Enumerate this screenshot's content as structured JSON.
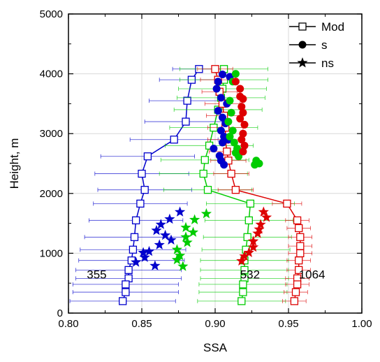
{
  "chart_data": {
    "type": "scatter",
    "xlabel": "SSA",
    "ylabel": "Height, m",
    "xlim": [
      0.8,
      1.0
    ],
    "ylim": [
      0,
      5000
    ],
    "xticks": [
      "0.80",
      "0.85",
      "0.90",
      "0.95",
      "1.00"
    ],
    "yticks": [
      "0",
      "1000",
      "2000",
      "3000",
      "4000",
      "5000"
    ],
    "grid": true,
    "legend_position": "top-right",
    "legend": [
      {
        "label": "Mod",
        "marker": "open-square"
      },
      {
        "label": "s",
        "marker": "filled-circle"
      },
      {
        "label": "ns",
        "marker": "filled-star"
      }
    ],
    "annotations": [
      {
        "text": "355",
        "x": 0.8125,
        "y": 650
      },
      {
        "text": "532",
        "x": 0.917,
        "y": 650
      },
      {
        "text": "1064",
        "x": 0.957,
        "y": 650
      }
    ],
    "colors": {
      "355": "#0000cc",
      "532": "#00cc00",
      "1064": "#dd0000"
    },
    "series": [
      {
        "wavelength": "355",
        "kind": "Mod",
        "marker": "open-square",
        "color": "#0000cc",
        "points": [
          [
            0.889,
            4080
          ],
          [
            0.884,
            3900
          ],
          [
            0.881,
            3550
          ],
          [
            0.88,
            3200
          ],
          [
            0.872,
            2900
          ],
          [
            0.854,
            2620
          ],
          [
            0.85,
            2330
          ],
          [
            0.852,
            2060
          ],
          [
            0.849,
            1830
          ],
          [
            0.846,
            1550
          ],
          [
            0.845,
            1270
          ],
          [
            0.844,
            1060
          ],
          [
            0.843,
            880
          ],
          [
            0.841,
            720
          ],
          [
            0.841,
            580
          ],
          [
            0.839,
            480
          ],
          [
            0.839,
            350
          ],
          [
            0.837,
            200
          ]
        ],
        "errors": [
          0.018,
          0.022,
          0.026,
          0.028,
          0.03,
          0.032,
          0.032,
          0.032,
          0.032,
          0.032,
          0.034,
          0.036,
          0.036,
          0.036,
          0.036,
          0.036,
          0.036,
          0.036
        ]
      },
      {
        "wavelength": "532",
        "kind": "Mod",
        "marker": "open-square",
        "color": "#00cc00",
        "points": [
          [
            0.906,
            4080
          ],
          [
            0.906,
            3900
          ],
          [
            0.905,
            3750
          ],
          [
            0.904,
            3600
          ],
          [
            0.902,
            3400
          ],
          [
            0.899,
            3100
          ],
          [
            0.896,
            2800
          ],
          [
            0.893,
            2560
          ],
          [
            0.892,
            2330
          ],
          [
            0.895,
            2060
          ],
          [
            0.924,
            1830
          ],
          [
            0.923,
            1550
          ],
          [
            0.922,
            1270
          ],
          [
            0.921,
            1060
          ],
          [
            0.92,
            880
          ],
          [
            0.92,
            720
          ],
          [
            0.92,
            580
          ],
          [
            0.919,
            480
          ],
          [
            0.919,
            350
          ],
          [
            0.918,
            200
          ]
        ],
        "errors": [
          0.03,
          0.03,
          0.03,
          0.03,
          0.03,
          0.03,
          0.03,
          0.03,
          0.03,
          0.03,
          0.03,
          0.03,
          0.03,
          0.03,
          0.03,
          0.03,
          0.03,
          0.03,
          0.03,
          0.03
        ]
      },
      {
        "wavelength": "1064",
        "kind": "Mod",
        "marker": "open-square",
        "color": "#dd0000",
        "points": [
          [
            0.9,
            4080
          ],
          [
            0.902,
            3900
          ],
          [
            0.903,
            3700
          ],
          [
            0.905,
            3500
          ],
          [
            0.906,
            3300
          ],
          [
            0.907,
            3100
          ],
          [
            0.907,
            2900
          ],
          [
            0.908,
            2700
          ],
          [
            0.909,
            2550
          ],
          [
            0.911,
            2330
          ],
          [
            0.914,
            2060
          ],
          [
            0.949,
            1830
          ],
          [
            0.956,
            1550
          ],
          [
            0.957,
            1420
          ],
          [
            0.958,
            1270
          ],
          [
            0.958,
            1120
          ],
          [
            0.958,
            1000
          ],
          [
            0.957,
            880
          ],
          [
            0.957,
            720
          ],
          [
            0.956,
            580
          ],
          [
            0.956,
            480
          ],
          [
            0.955,
            350
          ],
          [
            0.954,
            200
          ]
        ],
        "errors": [
          0.012,
          0.012,
          0.012,
          0.012,
          0.012,
          0.012,
          0.012,
          0.012,
          0.012,
          0.012,
          0.012,
          0.01,
          0.008,
          0.008,
          0.008,
          0.008,
          0.008,
          0.008,
          0.008,
          0.008,
          0.008,
          0.008,
          0.008
        ]
      },
      {
        "wavelength": "355",
        "kind": "s",
        "marker": "filled-circle",
        "color": "#0000cc",
        "points": [
          [
            0.905,
            3990
          ],
          [
            0.902,
            3870
          ],
          [
            0.901,
            3750
          ],
          [
            0.904,
            3600
          ],
          [
            0.908,
            3500
          ],
          [
            0.902,
            3380
          ],
          [
            0.905,
            3270
          ],
          [
            0.907,
            3170
          ],
          [
            0.904,
            3050
          ],
          [
            0.906,
            2950
          ],
          [
            0.905,
            2850
          ],
          [
            0.899,
            2750
          ],
          [
            0.903,
            2630
          ],
          [
            0.906,
            2480
          ],
          [
            0.904,
            2550
          ],
          [
            0.909,
            2900
          ],
          [
            0.91,
            3950
          ]
        ]
      },
      {
        "wavelength": "532",
        "kind": "s",
        "marker": "filled-circle",
        "color": "#00cc00",
        "points": [
          [
            0.914,
            4000
          ],
          [
            0.912,
            3870
          ],
          [
            0.91,
            3550
          ],
          [
            0.911,
            3350
          ],
          [
            0.909,
            3200
          ],
          [
            0.912,
            3050
          ],
          [
            0.91,
            2950
          ],
          [
            0.913,
            2850
          ],
          [
            0.915,
            2750
          ],
          [
            0.916,
            2620
          ],
          [
            0.928,
            2550
          ],
          [
            0.927,
            2480
          ],
          [
            0.93,
            2500
          ],
          [
            0.914,
            2680
          ]
        ]
      },
      {
        "wavelength": "1064",
        "kind": "s",
        "marker": "filled-circle",
        "color": "#dd0000",
        "points": [
          [
            0.914,
            3870
          ],
          [
            0.917,
            3750
          ],
          [
            0.917,
            3620
          ],
          [
            0.919,
            3580
          ],
          [
            0.918,
            3450
          ],
          [
            0.919,
            3350
          ],
          [
            0.917,
            3250
          ],
          [
            0.92,
            3150
          ],
          [
            0.919,
            3000
          ],
          [
            0.918,
            2900
          ],
          [
            0.92,
            2800
          ],
          [
            0.919,
            2700
          ]
        ]
      },
      {
        "wavelength": "355",
        "kind": "ns",
        "marker": "filled-star",
        "color": "#0000cc",
        "points": [
          [
            0.876,
            1690
          ],
          [
            0.869,
            1570
          ],
          [
            0.863,
            1480
          ],
          [
            0.86,
            1380
          ],
          [
            0.866,
            1300
          ],
          [
            0.87,
            1220
          ],
          [
            0.862,
            1140
          ],
          [
            0.855,
            1030
          ],
          [
            0.852,
            930
          ],
          [
            0.859,
            790
          ],
          [
            0.851,
            1010
          ],
          [
            0.846,
            850
          ]
        ]
      },
      {
        "wavelength": "532",
        "kind": "ns",
        "marker": "filled-star",
        "color": "#00cc00",
        "points": [
          [
            0.894,
            1660
          ],
          [
            0.886,
            1560
          ],
          [
            0.88,
            1430
          ],
          [
            0.885,
            1350
          ],
          [
            0.88,
            1270
          ],
          [
            0.881,
            1180
          ],
          [
            0.874,
            1060
          ],
          [
            0.876,
            960
          ],
          [
            0.874,
            890
          ],
          [
            0.878,
            780
          ]
        ]
      },
      {
        "wavelength": "1064",
        "kind": "ns",
        "marker": "filled-star",
        "color": "#dd0000",
        "points": [
          [
            0.933,
            1690
          ],
          [
            0.935,
            1600
          ],
          [
            0.931,
            1480
          ],
          [
            0.93,
            1400
          ],
          [
            0.929,
            1330
          ],
          [
            0.926,
            1200
          ],
          [
            0.926,
            1100
          ],
          [
            0.923,
            1010
          ],
          [
            0.92,
            950
          ],
          [
            0.918,
            870
          ]
        ]
      }
    ]
  }
}
